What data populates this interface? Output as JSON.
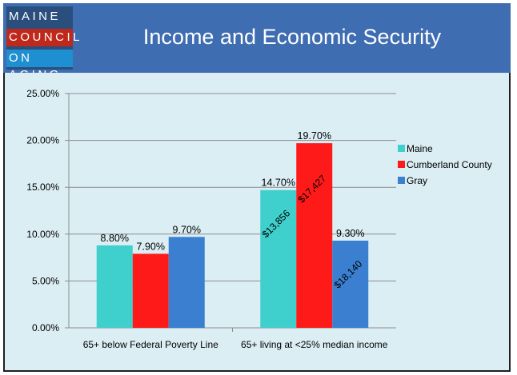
{
  "slide": {
    "title": "Income and Economic Security",
    "logo_lines": [
      "MAINE",
      "COUNCIL",
      "ON AGING"
    ]
  },
  "colors": {
    "title_bar": "#3e6db1",
    "chart_background": "#dbeef4",
    "maine": "#3fcfcc",
    "cumberland": "#ff1a1a",
    "gray": "#3a7fd0"
  },
  "chart_data": {
    "type": "bar",
    "categories": [
      "65+ below Federal Poverty Line",
      "65+ living at <25% median income"
    ],
    "series": [
      {
        "name": "Maine",
        "color": "#3fcfcc",
        "values": [
          8.8,
          14.7
        ],
        "labels": [
          "8.80%",
          "14.70%"
        ]
      },
      {
        "name": "Cumberland County",
        "color": "#ff1a1a",
        "values": [
          7.9,
          19.7
        ],
        "labels": [
          "7.90%",
          "19.70%"
        ]
      },
      {
        "name": "Gray",
        "color": "#3a7fd0",
        "values": [
          9.7,
          9.3
        ],
        "labels": [
          "9.70%",
          "9.30%"
        ]
      }
    ],
    "ylim": [
      0,
      25
    ],
    "yticks": [
      0,
      5,
      10,
      15,
      20,
      25
    ],
    "ytick_labels": [
      "0.00%",
      "5.00%",
      "10.00%",
      "15.00%",
      "20.00%",
      "25.00%"
    ],
    "grid": true,
    "legend_position": "right",
    "annotations": [
      {
        "series": "Maine",
        "category": 1,
        "text": "$13,856"
      },
      {
        "series": "Cumberland County",
        "category": 1,
        "text": "$17,427"
      },
      {
        "series": "Gray",
        "category": 1,
        "text": "$18,140"
      }
    ]
  }
}
